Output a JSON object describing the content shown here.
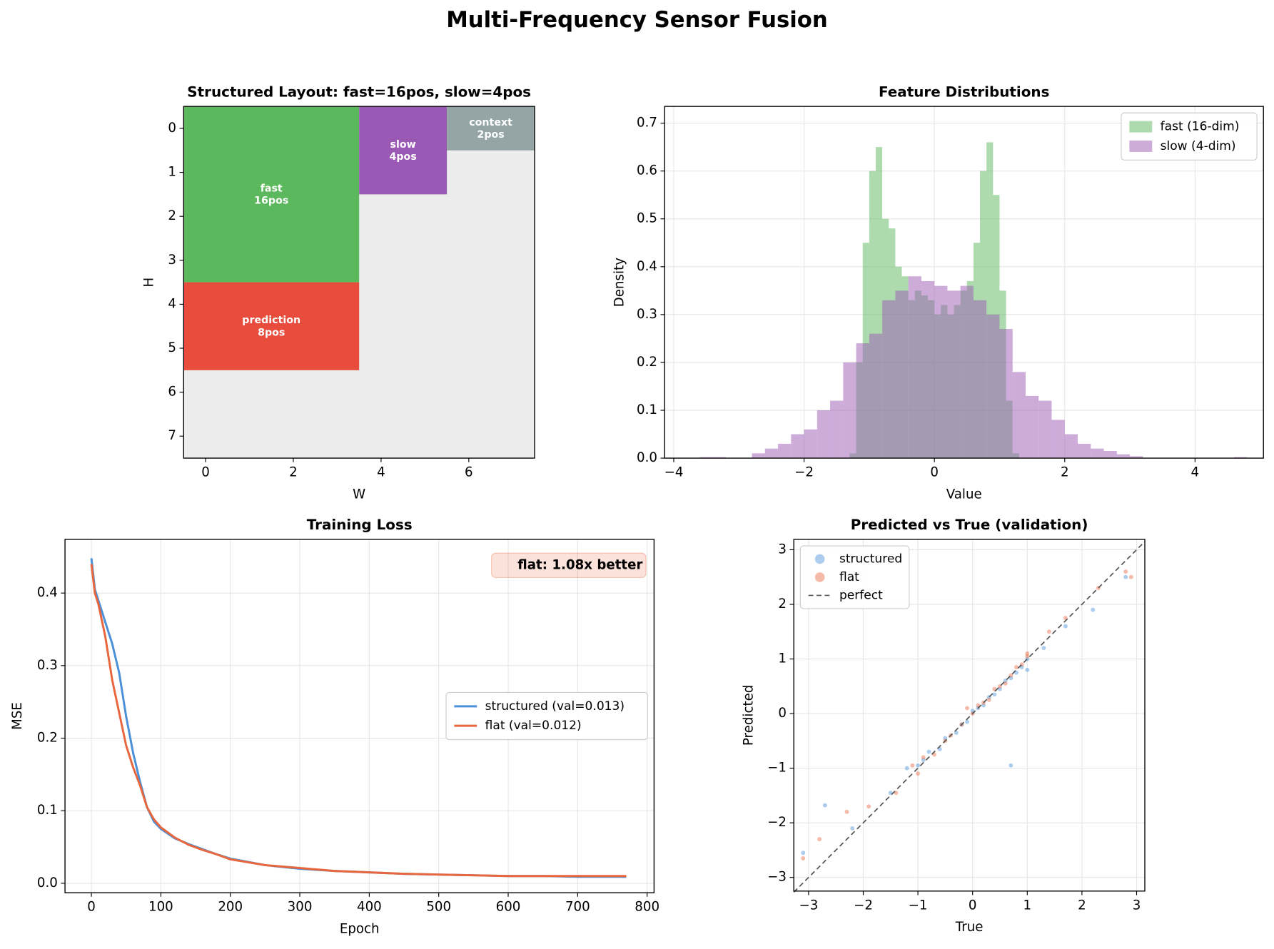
{
  "title": "Multi-Frequency Sensor Fusion",
  "chart_data": [
    {
      "type": "grid-layout",
      "title": "Structured Layout: fast=16pos, slow=4pos",
      "xlabel": "W",
      "ylabel": "H",
      "xlim": [
        -0.5,
        7.5
      ],
      "ylim": [
        7.5,
        -0.5
      ],
      "xticks": [
        0,
        2,
        4,
        6
      ],
      "yticks": [
        0,
        1,
        2,
        3,
        4,
        5,
        6,
        7
      ],
      "background": "#ececec",
      "regions": [
        {
          "label": "fast",
          "sublabel": "16pos",
          "color": "#5cb85c",
          "x": [
            -0.5,
            3.5
          ],
          "y": [
            -0.5,
            3.5
          ]
        },
        {
          "label": "prediction",
          "sublabel": "8pos",
          "color": "#e74c3c",
          "x": [
            -0.5,
            3.5
          ],
          "y": [
            3.5,
            5.5
          ]
        },
        {
          "label": "slow",
          "sublabel": "4pos",
          "color": "#9b59b6",
          "x": [
            3.5,
            5.5
          ],
          "y": [
            -0.5,
            1.5
          ]
        },
        {
          "label": "context",
          "sublabel": "2pos",
          "color": "#95a5a6",
          "x": [
            5.5,
            7.5
          ],
          "y": [
            -0.5,
            0.5
          ]
        }
      ]
    },
    {
      "type": "histogram",
      "title": "Feature Distributions",
      "xlabel": "Value",
      "ylabel": "Density",
      "xlim": [
        -4.14,
        5.05
      ],
      "ylim": [
        0,
        0.735
      ],
      "xticks": [
        {
          "value": -4,
          "label": "−4"
        },
        {
          "value": -2,
          "label": "−2"
        },
        0,
        2,
        4
      ],
      "yticks": [
        {
          "value": 0,
          "label": "0.0"
        },
        0.1,
        0.2,
        0.3,
        0.4,
        0.5,
        0.6,
        0.7
      ],
      "grid": true,
      "legend": "upper right",
      "opacity": 0.5,
      "series": [
        {
          "name": "fast (16-dim)",
          "color": "#5cb85c",
          "bins": [
            -1.3,
            -1.2,
            -1.1,
            -1.0,
            -0.9,
            -0.8,
            -0.7,
            -0.6,
            -0.5,
            -0.4,
            -0.3,
            -0.2,
            -0.1,
            0,
            0.1,
            0.2,
            0.3,
            0.4,
            0.5,
            0.6,
            0.7,
            0.8,
            0.9,
            1.0,
            1.1,
            1.2,
            1.3
          ],
          "values": [
            0.01,
            0.2,
            0.45,
            0.6,
            0.65,
            0.5,
            0.48,
            0.4,
            0.38,
            0.33,
            0.35,
            0.34,
            0.33,
            0.3,
            0.32,
            0.3,
            0.32,
            0.35,
            0.37,
            0.45,
            0.6,
            0.66,
            0.55,
            0.35,
            0.12,
            0.01
          ]
        },
        {
          "name": "slow (4-dim)",
          "color": "#9b59b6",
          "bins": [
            -3.6,
            -3.4,
            -3.2,
            -3.0,
            -2.8,
            -2.6,
            -2.4,
            -2.2,
            -2.0,
            -1.8,
            -1.6,
            -1.4,
            -1.2,
            -1.0,
            -0.8,
            -0.6,
            -0.4,
            -0.2,
            0,
            0.2,
            0.4,
            0.6,
            0.8,
            1.0,
            1.2,
            1.4,
            1.6,
            1.8,
            2.0,
            2.2,
            2.4,
            2.6,
            2.8,
            3.0,
            3.2,
            3.4,
            3.6,
            3.8,
            4.0,
            4.2,
            4.4,
            4.6,
            4.8
          ],
          "values": [
            0.002,
            0.002,
            0,
            0,
            0.01,
            0.02,
            0.03,
            0.05,
            0.06,
            0.1,
            0.12,
            0.2,
            0.24,
            0.26,
            0.33,
            0.35,
            0.38,
            0.37,
            0.36,
            0.35,
            0.36,
            0.33,
            0.3,
            0.27,
            0.18,
            0.13,
            0.12,
            0.08,
            0.05,
            0.03,
            0.02,
            0.015,
            0.008,
            0.004,
            0,
            0,
            0,
            0,
            0,
            0,
            0,
            0.002
          ]
        }
      ]
    },
    {
      "type": "line",
      "title": "Training Loss",
      "xlabel": "Epoch",
      "ylabel": "MSE",
      "xlim": [
        -38,
        810
      ],
      "ylim": [
        -0.013,
        0.474
      ],
      "xticks": [
        0,
        100,
        200,
        300,
        400,
        500,
        600,
        700,
        800
      ],
      "yticks": [
        {
          "value": 0,
          "label": "0.0"
        },
        0.1,
        0.2,
        0.3,
        0.4
      ],
      "grid": true,
      "legend": "center right",
      "annotation": "flat: 1.08x better",
      "annotation_color": "#e8663d",
      "x": [
        0,
        5,
        10,
        20,
        30,
        40,
        50,
        60,
        70,
        80,
        90,
        100,
        120,
        140,
        160,
        180,
        200,
        250,
        300,
        350,
        400,
        450,
        500,
        550,
        600,
        650,
        700,
        770
      ],
      "series": [
        {
          "name": "structured (val=0.013)",
          "color": "#4a90d9",
          "values": [
            0.448,
            0.405,
            0.39,
            0.36,
            0.33,
            0.29,
            0.23,
            0.18,
            0.14,
            0.105,
            0.085,
            0.075,
            0.062,
            0.054,
            0.047,
            0.04,
            0.034,
            0.025,
            0.02,
            0.017,
            0.015,
            0.013,
            0.012,
            0.011,
            0.01,
            0.01,
            0.009,
            0.009
          ]
        },
        {
          "name": "flat (val=0.012)",
          "color": "#e8663d",
          "values": [
            0.44,
            0.4,
            0.385,
            0.34,
            0.28,
            0.235,
            0.19,
            0.16,
            0.135,
            0.105,
            0.088,
            0.077,
            0.063,
            0.053,
            0.046,
            0.04,
            0.033,
            0.025,
            0.021,
            0.017,
            0.015,
            0.013,
            0.012,
            0.011,
            0.01,
            0.01,
            0.01,
            0.01
          ]
        }
      ]
    },
    {
      "type": "scatter",
      "title": "Predicted vs True (validation)",
      "xlabel": "True",
      "ylabel": "Predicted",
      "xlim": [
        -3.27,
        3.15
      ],
      "ylim": [
        -3.25,
        3.19
      ],
      "xticks": [
        {
          "value": -3,
          "label": "−3"
        },
        {
          "value": -2,
          "label": "−2"
        },
        {
          "value": -1,
          "label": "−1"
        },
        0,
        1,
        2,
        3
      ],
      "yticks": [
        {
          "value": -3,
          "label": "−3"
        },
        {
          "value": -2,
          "label": "−2"
        },
        {
          "value": -1,
          "label": "−1"
        },
        0,
        1,
        2,
        3
      ],
      "grid": true,
      "legend": "upper left",
      "opacity": 0.45,
      "series": [
        {
          "name": "structured",
          "color": "#4a90d9",
          "x": [
            -3.1,
            -2.7,
            -2.2,
            -1.5,
            -1.2,
            -1.0,
            -0.9,
            -0.8,
            -0.6,
            -0.5,
            -0.3,
            -0.2,
            -0.1,
            0.0,
            0.1,
            0.2,
            0.3,
            0.4,
            0.5,
            0.6,
            0.7,
            0.8,
            0.9,
            1.0,
            1.0,
            1.3,
            1.7,
            2.2,
            2.8,
            0.7
          ],
          "y": [
            -2.55,
            -1.68,
            -2.1,
            -1.45,
            -1.0,
            -0.95,
            -0.85,
            -0.7,
            -0.65,
            -0.45,
            -0.35,
            -0.2,
            -0.15,
            0.05,
            0.1,
            0.15,
            0.3,
            0.35,
            0.45,
            0.6,
            0.65,
            0.75,
            0.85,
            1.0,
            0.8,
            1.2,
            1.6,
            1.9,
            2.5,
            -0.95
          ]
        },
        {
          "name": "flat",
          "color": "#e8663d",
          "x": [
            -3.1,
            -2.8,
            -2.3,
            -1.9,
            -1.4,
            -1.1,
            -1.0,
            -0.9,
            -0.7,
            -0.5,
            -0.4,
            -0.2,
            -0.1,
            0.0,
            0.1,
            0.2,
            0.3,
            0.4,
            0.5,
            0.6,
            0.7,
            0.8,
            0.9,
            1.0,
            1.0,
            1.4,
            1.7,
            2.3,
            2.8,
            2.9
          ],
          "y": [
            -2.65,
            -2.3,
            -1.8,
            -1.7,
            -1.45,
            -0.95,
            -1.1,
            -0.8,
            -0.75,
            -0.5,
            -0.4,
            -0.2,
            0.1,
            0.0,
            0.15,
            0.2,
            0.25,
            0.45,
            0.5,
            0.55,
            0.7,
            0.85,
            0.9,
            1.05,
            1.1,
            1.5,
            1.75,
            2.3,
            2.6,
            2.5
          ]
        }
      ],
      "reference": {
        "name": "perfect",
        "color": "#555555",
        "x": [
          -3.27,
          3.15
        ],
        "y": [
          -3.27,
          3.15
        ]
      }
    }
  ]
}
